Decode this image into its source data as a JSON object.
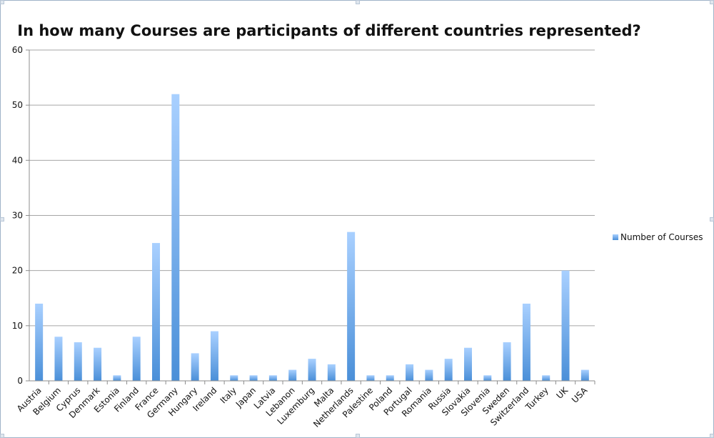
{
  "chart_data": {
    "type": "bar",
    "title": "In how many Courses are participants of different countries represented?",
    "xlabel": "",
    "ylabel": "",
    "ylim": [
      0,
      60
    ],
    "yticks": [
      0,
      10,
      20,
      30,
      40,
      50,
      60
    ],
    "grid": true,
    "legend_position": "right",
    "categories": [
      "Austria",
      "Belgium",
      "Cyprus",
      "Denmark",
      "Estonia",
      "Finland",
      "France",
      "Germany",
      "Hungary",
      "Ireland",
      "Italy",
      "Japan",
      "Latvia",
      "Lebanon",
      "Luxemburg",
      "Malta",
      "Netherlands",
      "Palestine",
      "Poland",
      "Portugal",
      "Romania",
      "Russia",
      "Slovakia",
      "Slovenia",
      "Sweden",
      "Switzerland",
      "Turkey",
      "UK",
      "USA"
    ],
    "series": [
      {
        "name": "Number of Courses",
        "color": "#5b9be6",
        "values": [
          14,
          8,
          7,
          6,
          1,
          8,
          25,
          52,
          5,
          9,
          1,
          1,
          1,
          2,
          4,
          3,
          27,
          1,
          1,
          3,
          2,
          4,
          6,
          1,
          7,
          14,
          1,
          20,
          2
        ]
      }
    ]
  },
  "colors": {
    "bar_top": "#a9d0ff",
    "bar_bottom": "#4a8fd8",
    "grid": "#a6a6a6",
    "axis": "#8c8c8c",
    "frame": "#9fb3c8"
  }
}
